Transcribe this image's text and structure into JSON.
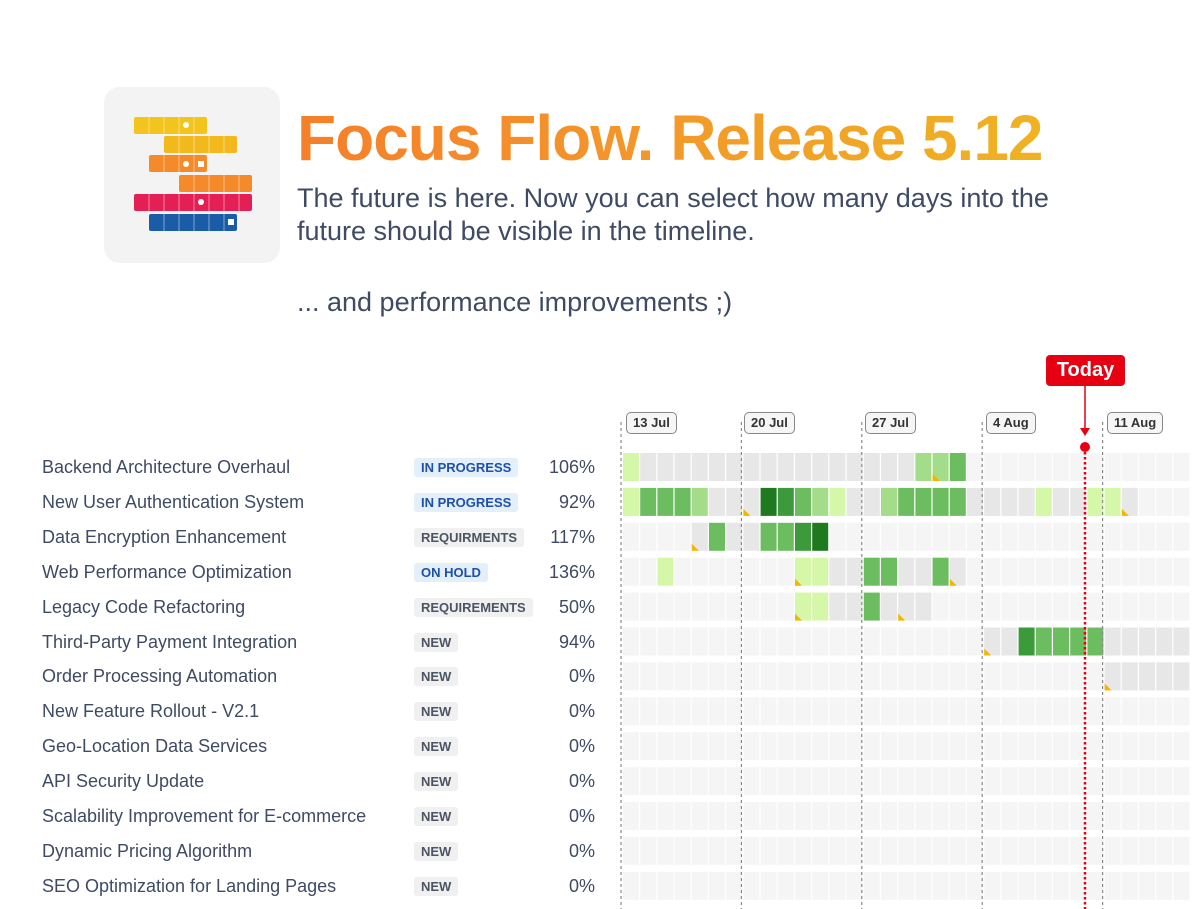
{
  "header": {
    "title": "Focus Flow. Release 5.12",
    "subtitle": "The future is here. Now you can select how many days into the future should be visible in the timeline.",
    "extra": "... and performance improvements ;)"
  },
  "timeline": {
    "today_label": "Today",
    "dates": [
      "13 Jul",
      "20 Jul",
      "27 Jul",
      "4 Aug",
      "11 Aug"
    ],
    "today_day_index": 27
  },
  "colors": {
    "today": "#e60012",
    "title_start": "#f57f2a",
    "title_end": "#eeb322",
    "cell_empty": "#f5f5f5",
    "cell_planned": "#e7e7e7",
    "green_1": "#d4f7a8",
    "green_2": "#a4dd8a",
    "green_3": "#6cbd60",
    "green_4": "#3c9a3a",
    "green_5": "#1f7a1f",
    "overdue_marker": "#f4b400"
  },
  "tasks": [
    {
      "name": "Backend Architecture Overhaul",
      "status": "IN PROGRESS",
      "status_type": "blue",
      "percent": "106%",
      "cells": "1000000000000000022300000000000000000000000000000",
      "planned": [
        [
          0,
          18
        ]
      ],
      "markers": [
        18
      ]
    },
    {
      "name": "New User Authentication System",
      "status": "IN PROGRESS",
      "status_type": "blue",
      "percent": "92%",
      "cells": "1333200054321002333300001001100000000000000000000",
      "planned": [
        [
          0,
          29
        ]
      ],
      "markers": [
        7,
        29
      ]
    },
    {
      "name": "Data Encryption Enhancement",
      "status": "REQUIRMENTS",
      "status_type": "gray",
      "percent": "117%",
      "cells": "0000030033450000000000000000000000000000000000000",
      "planned": [
        [
          4,
          11
        ]
      ],
      "markers": [
        4
      ]
    },
    {
      "name": "Web Performance Optimization",
      "status": "ON HOLD",
      "status_type": "blue",
      "percent": "136%",
      "cells": "0010000000110033003000000000000000000000000000000",
      "planned": [
        [
          10,
          19
        ]
      ],
      "markers": [
        10,
        19
      ]
    },
    {
      "name": "Legacy Code Refactoring",
      "status": "REQUIREMENTS",
      "status_type": "gray",
      "percent": "50%",
      "cells": "0000000000110030000000000000000000000000000000000",
      "planned": [
        [
          10,
          17
        ]
      ],
      "markers": [
        10,
        16
      ]
    },
    {
      "name": "Third-Party Payment Integration",
      "status": "NEW",
      "status_type": "gray",
      "percent": "94%",
      "cells": "0000000000000000000000043333000000000000000000000",
      "planned": [
        [
          21,
          33
        ]
      ],
      "markers": [
        21
      ]
    },
    {
      "name": "Order Processing Automation",
      "status": "NEW",
      "status_type": "gray",
      "percent": "0%",
      "cells": "0000000000000000000000000000000000000000000000000",
      "planned": [
        [
          28,
          33
        ]
      ],
      "markers": [
        28
      ]
    },
    {
      "name": "New Feature Rollout - V2.1",
      "status": "NEW",
      "status_type": "gray",
      "percent": "0%",
      "cells": "",
      "planned": [],
      "markers": []
    },
    {
      "name": "Geo-Location Data Services",
      "status": "NEW",
      "status_type": "gray",
      "percent": "0%",
      "cells": "",
      "planned": [],
      "markers": []
    },
    {
      "name": "API Security Update",
      "status": "NEW",
      "status_type": "gray",
      "percent": "0%",
      "cells": "",
      "planned": [],
      "markers": []
    },
    {
      "name": "Scalability Improvement for E-commerce",
      "status": "NEW",
      "status_type": "gray",
      "percent": "0%",
      "cells": "",
      "planned": [],
      "markers": []
    },
    {
      "name": "Dynamic Pricing Algorithm",
      "status": "NEW",
      "status_type": "gray",
      "percent": "0%",
      "cells": "",
      "planned": [],
      "markers": []
    },
    {
      "name": "SEO Optimization for Landing Pages",
      "status": "NEW",
      "status_type": "gray",
      "percent": "0%",
      "cells": "",
      "planned": [],
      "markers": []
    }
  ]
}
